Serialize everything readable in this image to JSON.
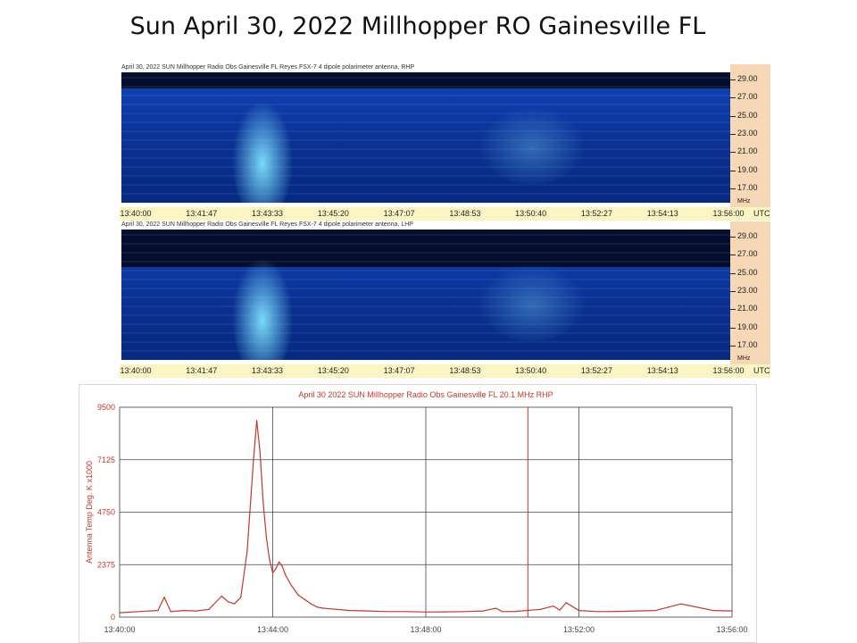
{
  "slide": {
    "title": "Sun April 30, 2022 Millhopper RO Gainesville FL"
  },
  "spectrograms": [
    {
      "header": "April 30, 2022 SUN Millhopper Radio Obs Gainesville FL Reyes FSX-7 4 dipole polarimeter antenna, RHP",
      "freq_labels": [
        "29.00",
        "27.00",
        "25.00",
        "23.00",
        "21.00",
        "19.00",
        "17.00"
      ],
      "freq_unit": "MHz",
      "time_labels": [
        "13:40:00",
        "13:41:47",
        "13:43:33",
        "13:45:20",
        "13:47:07",
        "13:48:53",
        "13:50:40",
        "13:52:27",
        "13:54:13",
        "13:56:00"
      ],
      "time_unit": "UTC",
      "colors": {
        "background": "#0b2f8f",
        "burst": "#7fe3ff",
        "dark_band": "#020614"
      }
    },
    {
      "header": "April 30, 2022 SUN Millhopper Radio Obs Gainesville FL Reyes FSX-7 4 dipole polarimeter antenna, LHP",
      "freq_labels": [
        "29.00",
        "27.00",
        "25.00",
        "23.00",
        "21.00",
        "19.00",
        "17.00"
      ],
      "freq_unit": "MHz",
      "time_labels": [
        "13:40:00",
        "13:41:47",
        "13:43:33",
        "13:45:20",
        "13:47:07",
        "13:48:53",
        "13:50:40",
        "13:52:27",
        "13:54:13",
        "13:56:00"
      ],
      "time_unit": "UTC",
      "colors": {
        "background": "#0b2f8f",
        "burst": "#7fe3ff",
        "dark_band": "#020614"
      }
    }
  ],
  "chart_data": {
    "type": "line",
    "title": "April 30 2022 SUN Millhopper Radio Obs Gainesville FL 20.1 MHz RHP",
    "ylabel": "Antenna Temp Deg. K x1000",
    "xlabel": "",
    "xlim": [
      "13:40:00",
      "13:56:00"
    ],
    "ylim": [
      0,
      9500
    ],
    "x_ticks": [
      "13:40:00",
      "13:44:00",
      "13:48:00",
      "13:52:00",
      "13:56:00"
    ],
    "y_ticks": [
      0,
      2375,
      4750,
      7125,
      9500
    ],
    "grid": true,
    "line_color": "#c0392b",
    "marker_time": "13:50:40",
    "series": [
      {
        "x": [
          "13:40:00",
          "13:40:30",
          "13:41:00",
          "13:41:10",
          "13:41:20",
          "13:41:40",
          "13:42:00",
          "13:42:20",
          "13:42:40",
          "13:42:50",
          "13:43:00",
          "13:43:10",
          "13:43:20",
          "13:43:30",
          "13:43:35",
          "13:43:40",
          "13:43:45",
          "13:43:50",
          "13:43:55",
          "13:44:00",
          "13:44:05",
          "13:44:10",
          "13:44:15",
          "13:44:20",
          "13:44:30",
          "13:44:40",
          "13:44:50",
          "13:45:00",
          "13:45:10",
          "13:45:20",
          "13:45:40",
          "13:46:00",
          "13:46:30",
          "13:47:00",
          "13:47:30",
          "13:48:00",
          "13:48:30",
          "13:49:00",
          "13:49:30",
          "13:49:50",
          "13:50:00",
          "13:50:20",
          "13:51:00",
          "13:51:20",
          "13:51:30",
          "13:51:40",
          "13:52:00",
          "13:52:30",
          "13:53:00",
          "13:53:30",
          "13:54:00",
          "13:54:20",
          "13:54:40",
          "13:55:00",
          "13:55:30",
          "13:56:00"
        ],
        "y": [
          200,
          250,
          300,
          900,
          250,
          300,
          280,
          350,
          950,
          700,
          600,
          900,
          3000,
          7200,
          8900,
          7500,
          5200,
          3600,
          2600,
          2000,
          2200,
          2500,
          2300,
          1900,
          1400,
          1000,
          800,
          600,
          450,
          400,
          350,
          300,
          280,
          250,
          250,
          230,
          240,
          250,
          280,
          400,
          250,
          260,
          350,
          500,
          320,
          650,
          300,
          250,
          260,
          280,
          300,
          450,
          600,
          480,
          300,
          280
        ]
      }
    ]
  }
}
